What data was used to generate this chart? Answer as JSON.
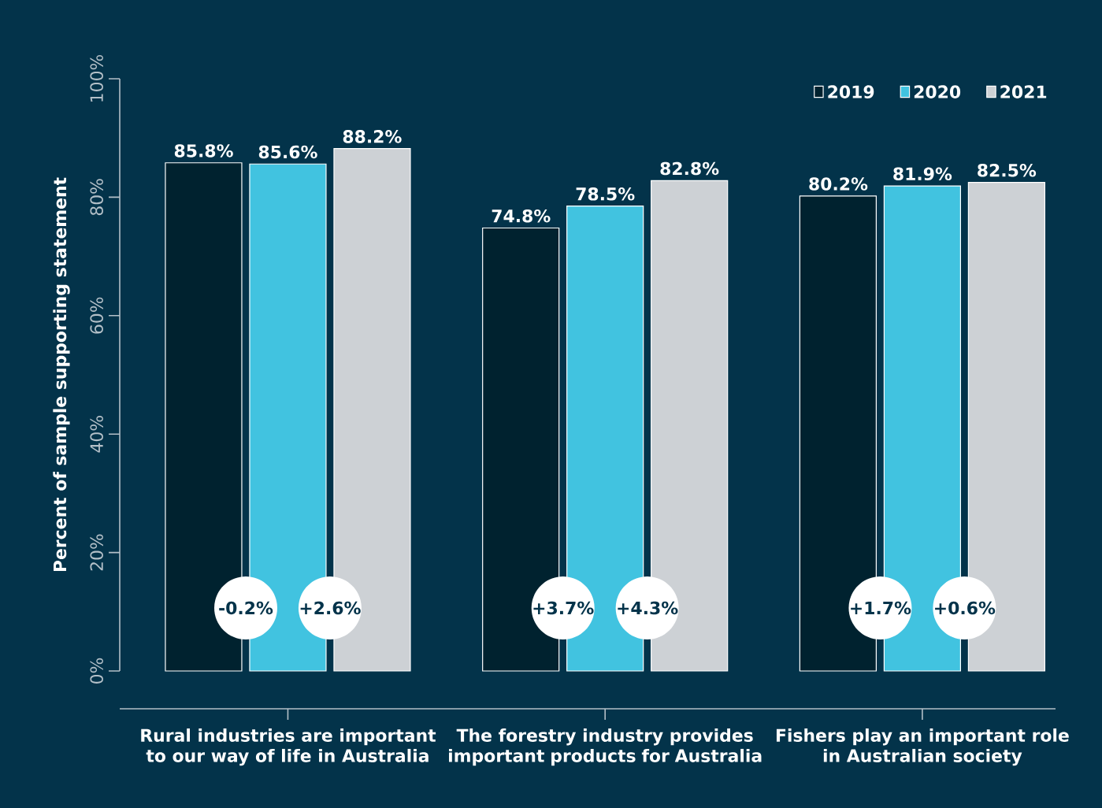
{
  "chart_data": {
    "type": "bar",
    "ylabel": "Percent of sample supporting statement",
    "categories": [
      "Rural industries are important to our way of life in Australia",
      "The forestry industry provides important products for Australia",
      "Fishers play an important role in Australian society"
    ],
    "series": [
      {
        "name": "2019",
        "color": "#00222f",
        "values": [
          85.8,
          74.8,
          80.2
        ],
        "value_labels": [
          "85.8%",
          "74.8%",
          "80.2%"
        ]
      },
      {
        "name": "2020",
        "color": "#41c3e0",
        "values": [
          85.6,
          78.5,
          81.9
        ],
        "value_labels": [
          "85.6%",
          "78.5%",
          "81.9%"
        ]
      },
      {
        "name": "2021",
        "color": "#cdd1d5",
        "values": [
          88.2,
          82.8,
          82.5
        ],
        "value_labels": [
          "88.2%",
          "82.8%",
          "82.5%"
        ]
      }
    ],
    "ylim": [
      0,
      100
    ],
    "yticks": [
      {
        "value": 0,
        "label": "0%"
      },
      {
        "value": 20,
        "label": "20%"
      },
      {
        "value": 40,
        "label": "40%"
      },
      {
        "value": 60,
        "label": "60%"
      },
      {
        "value": 80,
        "label": "80%"
      },
      {
        "value": 100,
        "label": "100%"
      }
    ],
    "grid": false,
    "legend": "top right",
    "annotations": [
      "-0.2%",
      "+2.6%",
      "+3.7%",
      "+4.3%",
      "+1.7%",
      "+0.6%"
    ]
  }
}
